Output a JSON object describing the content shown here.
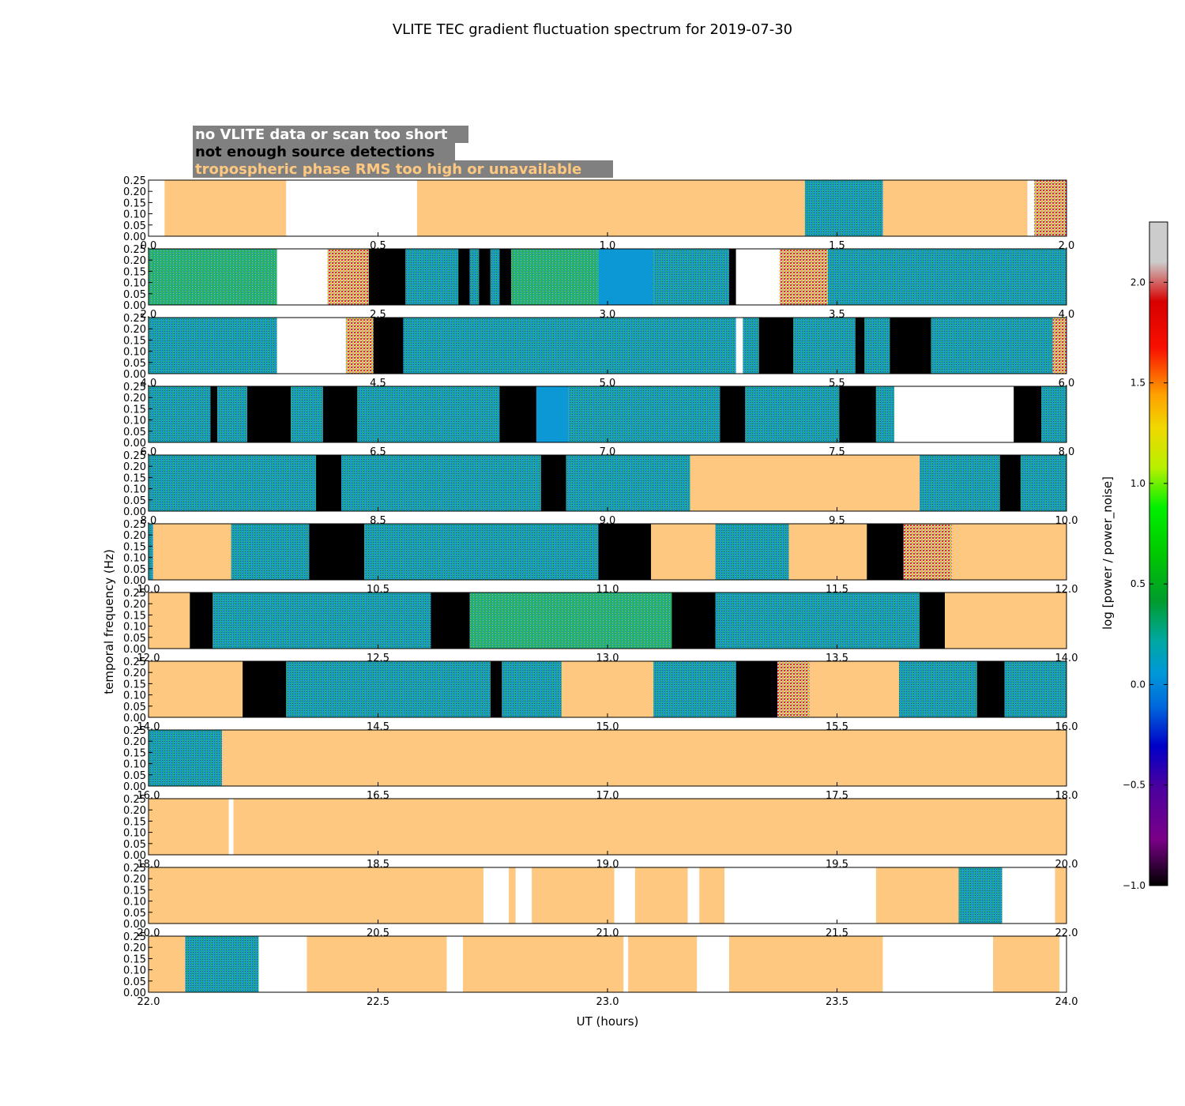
{
  "chart_data": {
    "type": "heatmap",
    "title": "VLITE TEC gradient fluctuation spectrum for 2019-07-30",
    "xlabel": "UT (hours)",
    "ylabel": "temporal frequency (Hz)",
    "ylim": [
      0,
      0.25
    ],
    "y_ticks": [
      "0.00",
      "0.05",
      "0.10",
      "0.15",
      "0.20",
      "0.25"
    ],
    "colorbar": {
      "label": "log [power / power_noise]",
      "range": [
        -1.0,
        2.3
      ],
      "ticks": [
        "−1.0",
        "−0.5",
        "0.0",
        "0.5",
        "1.0",
        "1.5",
        "2.0"
      ],
      "tick_values": [
        -1.0,
        -0.5,
        0.0,
        0.5,
        1.0,
        1.5,
        2.0
      ],
      "colormap": "nipy_spectral"
    },
    "legend": [
      {
        "label": "no VLITE data or scan too short",
        "text_color": "#ffffff",
        "background": "#808080",
        "fill": "#ffffff"
      },
      {
        "label": "not enough source detections",
        "text_color": "#000000",
        "background": "#808080",
        "fill": "#000000"
      },
      {
        "label": "tropospheric phase RMS too high or unavailable",
        "text_color": "#ffc880",
        "background": "#808080",
        "fill": "#ffc880"
      }
    ],
    "panels": [
      {
        "x_start": 0,
        "x_ticks": [
          "0.0",
          "0.5",
          "1.0",
          "1.5",
          "2.0"
        ],
        "segments": [
          [
            0.0,
            0.035,
            "nodata"
          ],
          [
            0.035,
            0.3,
            "tropo"
          ],
          [
            0.3,
            0.585,
            "nodata"
          ],
          [
            0.585,
            1.43,
            "tropo"
          ],
          [
            1.43,
            1.6,
            "spec"
          ],
          [
            1.6,
            1.915,
            "tropo"
          ],
          [
            1.915,
            1.93,
            "nodata"
          ],
          [
            1.93,
            2.0,
            "spec_hot"
          ]
        ]
      },
      {
        "x_start": 2,
        "x_ticks": [
          "2.0",
          "2.5",
          "3.0",
          "3.5",
          "4.0"
        ],
        "segments": [
          [
            2.0,
            2.28,
            "spec_green"
          ],
          [
            2.28,
            2.39,
            "nodata"
          ],
          [
            2.39,
            2.48,
            "spec_hot"
          ],
          [
            2.48,
            2.56,
            "detect"
          ],
          [
            2.56,
            2.675,
            "spec"
          ],
          [
            2.675,
            2.7,
            "detect"
          ],
          [
            2.7,
            2.72,
            "spec"
          ],
          [
            2.72,
            2.745,
            "detect"
          ],
          [
            2.745,
            2.765,
            "spec"
          ],
          [
            2.765,
            2.79,
            "detect"
          ],
          [
            2.79,
            2.98,
            "spec_green"
          ],
          [
            2.98,
            3.1,
            "spec_blue"
          ],
          [
            3.1,
            3.265,
            "spec"
          ],
          [
            3.265,
            3.28,
            "detect"
          ],
          [
            3.28,
            3.375,
            "nodata"
          ],
          [
            3.375,
            3.48,
            "spec_hot"
          ],
          [
            3.48,
            4.0,
            "spec"
          ]
        ]
      },
      {
        "x_start": 4,
        "x_ticks": [
          "4.0",
          "4.5",
          "5.0",
          "5.5",
          "6.0"
        ],
        "segments": [
          [
            4.0,
            4.28,
            "spec"
          ],
          [
            4.28,
            4.43,
            "nodata"
          ],
          [
            4.43,
            4.49,
            "spec_hot"
          ],
          [
            4.49,
            4.555,
            "detect"
          ],
          [
            4.555,
            5.28,
            "spec"
          ],
          [
            5.28,
            5.295,
            "nodata"
          ],
          [
            5.295,
            5.33,
            "spec"
          ],
          [
            5.33,
            5.405,
            "detect"
          ],
          [
            5.405,
            5.54,
            "spec"
          ],
          [
            5.54,
            5.56,
            "detect"
          ],
          [
            5.56,
            5.615,
            "spec"
          ],
          [
            5.615,
            5.705,
            "detect"
          ],
          [
            5.705,
            5.97,
            "spec"
          ],
          [
            5.97,
            6.0,
            "spec_hot"
          ]
        ]
      },
      {
        "x_start": 6,
        "x_ticks": [
          "6.0",
          "6.5",
          "7.0",
          "7.5",
          "8.0"
        ],
        "segments": [
          [
            6.0,
            6.135,
            "spec"
          ],
          [
            6.135,
            6.15,
            "detect"
          ],
          [
            6.15,
            6.215,
            "spec"
          ],
          [
            6.215,
            6.31,
            "detect"
          ],
          [
            6.31,
            6.38,
            "spec"
          ],
          [
            6.38,
            6.455,
            "detect"
          ],
          [
            6.455,
            6.765,
            "spec"
          ],
          [
            6.765,
            6.845,
            "detect"
          ],
          [
            6.845,
            6.915,
            "spec_blue"
          ],
          [
            6.915,
            7.245,
            "spec"
          ],
          [
            7.245,
            7.3,
            "detect"
          ],
          [
            7.3,
            7.505,
            "spec"
          ],
          [
            7.505,
            7.585,
            "detect"
          ],
          [
            7.585,
            7.625,
            "spec"
          ],
          [
            7.625,
            7.885,
            "nodata"
          ],
          [
            7.885,
            7.945,
            "detect"
          ],
          [
            7.945,
            8.0,
            "spec"
          ]
        ]
      },
      {
        "x_start": 8,
        "x_ticks": [
          "8.0",
          "8.5",
          "9.0",
          "9.5",
          "10.0"
        ],
        "segments": [
          [
            8.0,
            8.365,
            "spec"
          ],
          [
            8.365,
            8.42,
            "detect"
          ],
          [
            8.42,
            8.855,
            "spec"
          ],
          [
            8.855,
            8.91,
            "detect"
          ],
          [
            8.91,
            9.18,
            "spec"
          ],
          [
            9.18,
            9.68,
            "tropo"
          ],
          [
            9.68,
            9.855,
            "spec"
          ],
          [
            9.855,
            9.9,
            "detect"
          ],
          [
            9.9,
            10.0,
            "spec"
          ]
        ]
      },
      {
        "x_start": 10,
        "x_ticks": [
          "10.0",
          "10.5",
          "11.0",
          "11.5",
          "12.0"
        ],
        "segments": [
          [
            10.0,
            10.01,
            "spec"
          ],
          [
            10.01,
            10.18,
            "tropo"
          ],
          [
            10.18,
            10.35,
            "spec"
          ],
          [
            10.35,
            10.47,
            "detect"
          ],
          [
            10.47,
            10.98,
            "spec"
          ],
          [
            10.98,
            11.095,
            "detect"
          ],
          [
            11.095,
            11.235,
            "tropo"
          ],
          [
            11.235,
            11.395,
            "spec"
          ],
          [
            11.395,
            11.565,
            "tropo"
          ],
          [
            11.565,
            11.645,
            "detect"
          ],
          [
            11.645,
            11.75,
            "spec_hot"
          ],
          [
            11.75,
            12.0,
            "tropo"
          ]
        ]
      },
      {
        "x_start": 12,
        "x_ticks": [
          "12.0",
          "12.5",
          "13.0",
          "13.5",
          "14.0"
        ],
        "segments": [
          [
            12.0,
            12.09,
            "tropo"
          ],
          [
            12.09,
            12.14,
            "detect"
          ],
          [
            12.14,
            12.615,
            "spec"
          ],
          [
            12.615,
            12.7,
            "detect"
          ],
          [
            12.7,
            13.14,
            "spec_green"
          ],
          [
            13.14,
            13.235,
            "detect"
          ],
          [
            13.235,
            13.68,
            "spec"
          ],
          [
            13.68,
            13.735,
            "detect"
          ],
          [
            13.735,
            14.0,
            "tropo"
          ]
        ]
      },
      {
        "x_start": 14,
        "x_ticks": [
          "14.0",
          "14.5",
          "15.0",
          "15.5",
          "16.0"
        ],
        "segments": [
          [
            14.0,
            14.205,
            "tropo"
          ],
          [
            14.205,
            14.3,
            "detect"
          ],
          [
            14.3,
            14.745,
            "spec"
          ],
          [
            14.745,
            14.77,
            "detect"
          ],
          [
            14.77,
            14.9,
            "spec"
          ],
          [
            14.9,
            15.1,
            "tropo"
          ],
          [
            15.1,
            15.28,
            "spec"
          ],
          [
            15.28,
            15.37,
            "detect"
          ],
          [
            15.37,
            15.44,
            "spec_hot"
          ],
          [
            15.44,
            15.635,
            "tropo"
          ],
          [
            15.635,
            15.805,
            "spec"
          ],
          [
            15.805,
            15.865,
            "detect"
          ],
          [
            15.865,
            16.0,
            "spec"
          ]
        ]
      },
      {
        "x_start": 16,
        "x_ticks": [
          "16.0",
          "16.5",
          "17.0",
          "17.5",
          "18.0"
        ],
        "segments": [
          [
            16.0,
            16.16,
            "spec"
          ],
          [
            16.16,
            18.0,
            "tropo"
          ]
        ]
      },
      {
        "x_start": 18,
        "x_ticks": [
          "18.0",
          "18.5",
          "19.0",
          "19.5",
          "20.0"
        ],
        "segments": [
          [
            18.0,
            18.175,
            "tropo"
          ],
          [
            18.175,
            18.185,
            "nodata"
          ],
          [
            18.185,
            20.0,
            "tropo"
          ]
        ]
      },
      {
        "x_start": 20,
        "x_ticks": [
          "20.0",
          "20.5",
          "21.0",
          "21.5",
          "22.0"
        ],
        "segments": [
          [
            20.0,
            20.73,
            "tropo"
          ],
          [
            20.73,
            20.785,
            "nodata"
          ],
          [
            20.785,
            20.8,
            "tropo"
          ],
          [
            20.8,
            20.835,
            "nodata"
          ],
          [
            20.835,
            21.015,
            "tropo"
          ],
          [
            21.015,
            21.06,
            "nodata"
          ],
          [
            21.06,
            21.175,
            "tropo"
          ],
          [
            21.175,
            21.2,
            "nodata"
          ],
          [
            21.2,
            21.255,
            "tropo"
          ],
          [
            21.255,
            21.585,
            "nodata"
          ],
          [
            21.585,
            21.765,
            "tropo"
          ],
          [
            21.765,
            21.86,
            "spec"
          ],
          [
            21.86,
            21.975,
            "nodata"
          ],
          [
            21.975,
            22.0,
            "tropo"
          ]
        ]
      },
      {
        "x_start": 22,
        "x_ticks": [
          "22.0",
          "22.5",
          "23.0",
          "23.5",
          "24.0"
        ],
        "segments": [
          [
            22.0,
            22.08,
            "tropo"
          ],
          [
            22.08,
            22.24,
            "spec"
          ],
          [
            22.24,
            22.345,
            "nodata"
          ],
          [
            22.345,
            22.65,
            "tropo"
          ],
          [
            22.65,
            22.685,
            "nodata"
          ],
          [
            22.685,
            23.035,
            "tropo"
          ],
          [
            23.035,
            23.045,
            "nodata"
          ],
          [
            23.045,
            23.195,
            "tropo"
          ],
          [
            23.195,
            23.265,
            "nodata"
          ],
          [
            23.265,
            23.6,
            "tropo"
          ],
          [
            23.6,
            23.84,
            "nodata"
          ],
          [
            23.84,
            23.985,
            "tropo"
          ],
          [
            23.985,
            24.0,
            "nodata"
          ]
        ]
      }
    ]
  }
}
